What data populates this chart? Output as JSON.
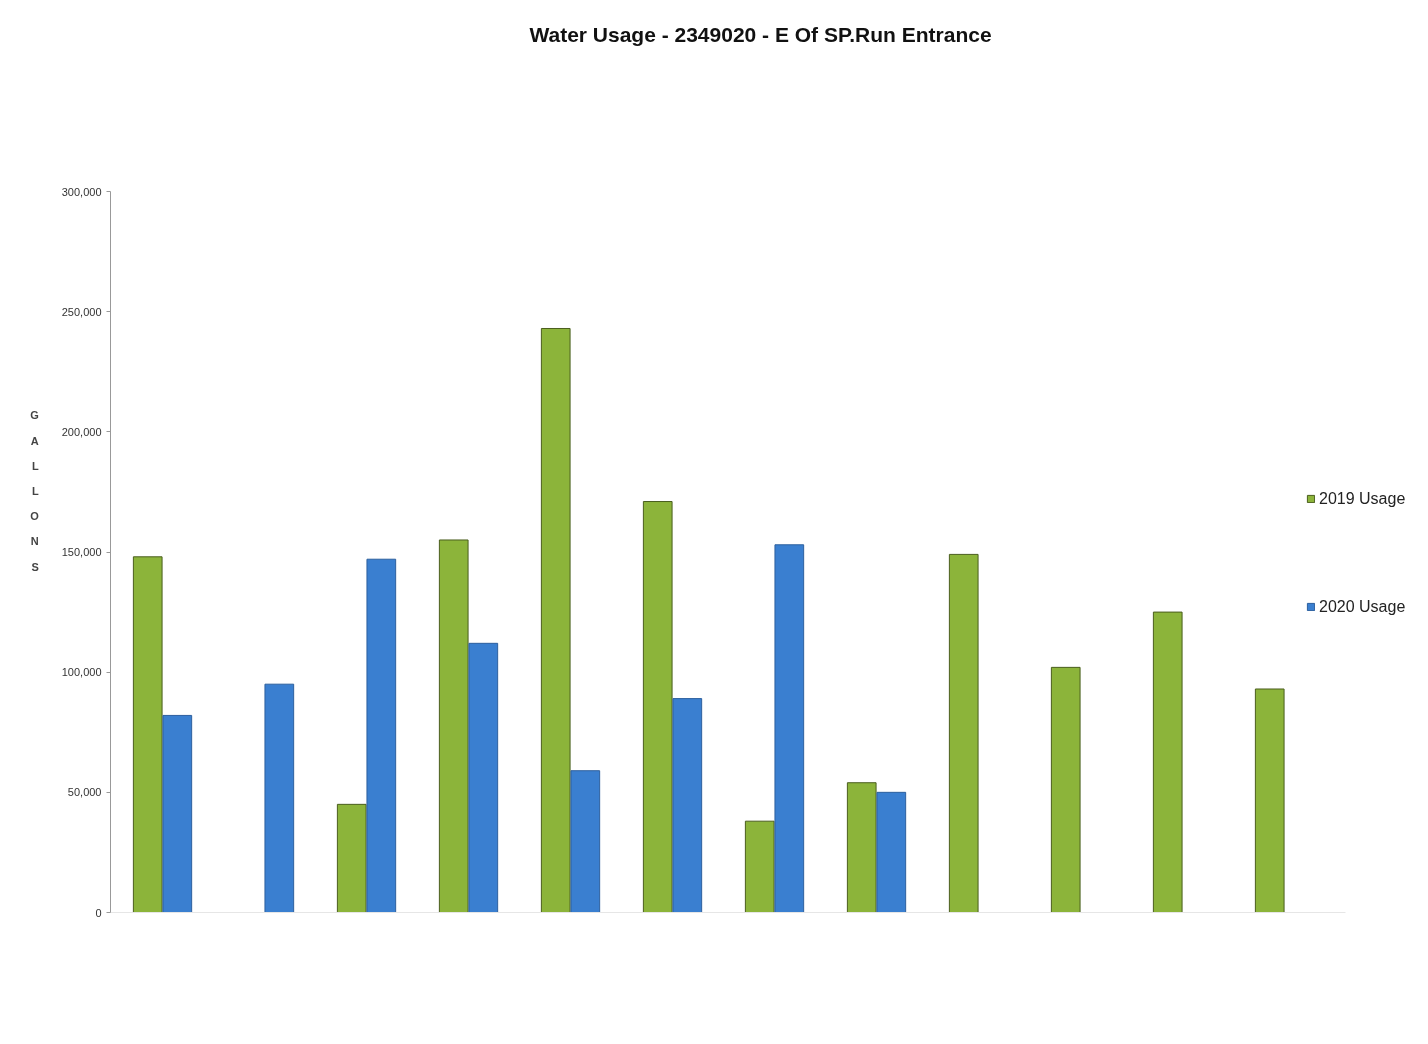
{
  "chart_data": {
    "type": "bar",
    "title": "Water Usage - 2349020 - E Of SP.Run Entrance",
    "ylabel": "GALLONS",
    "categories": [
      null,
      null,
      null,
      null,
      null,
      null,
      null,
      null,
      null,
      null,
      null,
      null
    ],
    "series": [
      {
        "name": "2019 Usage",
        "color": "#8cb43a",
        "values": [
          148000,
          null,
          45000,
          155000,
          243000,
          171000,
          38000,
          54000,
          149000,
          102000,
          125000,
          93000
        ]
      },
      {
        "name": "2020 Usage",
        "color": "#3a7fd0",
        "values": [
          82000,
          95000,
          147000,
          112000,
          59000,
          89000,
          153000,
          50000,
          null,
          null,
          null,
          null
        ]
      }
    ],
    "ylim": [
      0,
      300000
    ],
    "yticks": [
      0,
      {
        "value": 50000,
        "label": "50,000"
      },
      {
        "value": 100000,
        "label": "100,000"
      },
      {
        "value": 150000,
        "label": "150,000"
      },
      {
        "value": 200000,
        "label": "200,000"
      },
      {
        "value": 250000,
        "label": "250,000"
      },
      {
        "value": 300000,
        "label": "300,000"
      }
    ],
    "grid": false,
    "legend": "right",
    "tick_labels": "y"
  }
}
